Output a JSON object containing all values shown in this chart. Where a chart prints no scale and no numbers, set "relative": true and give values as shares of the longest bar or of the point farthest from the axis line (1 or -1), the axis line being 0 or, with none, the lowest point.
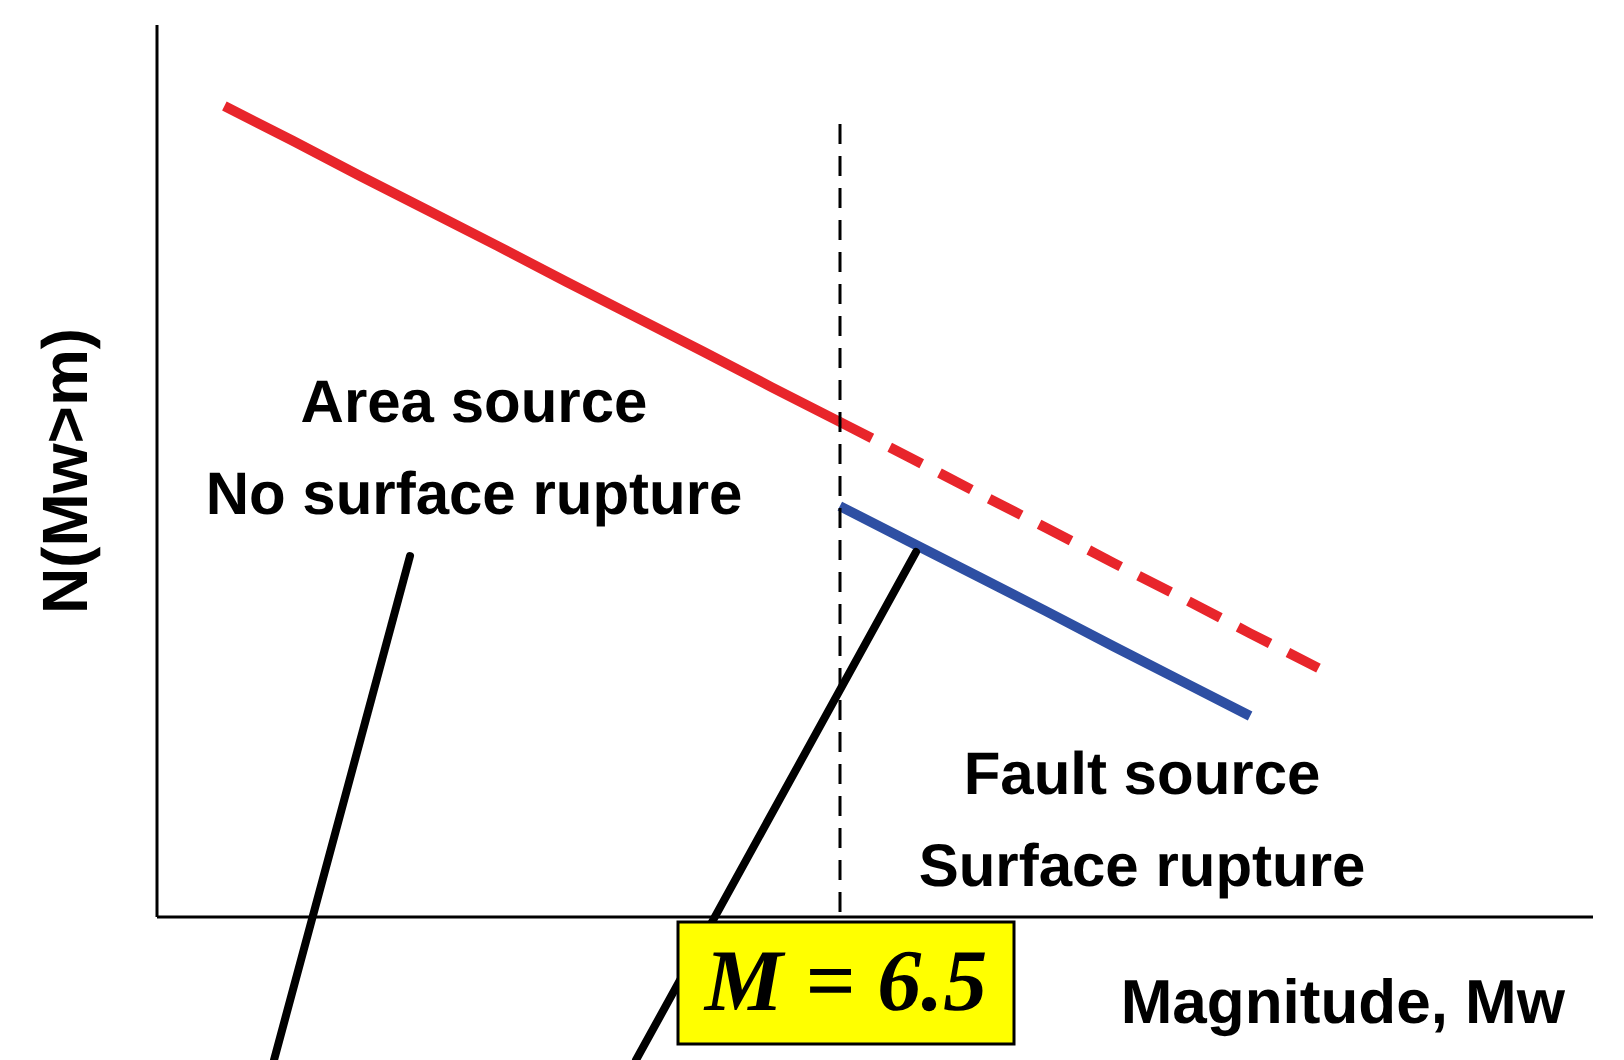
{
  "chart_data": {
    "type": "line",
    "xlabel": "Magnitude, Mw",
    "ylabel": "N(Mw>m)",
    "categories": [
      null,
      null,
      null,
      null,
      null,
      null,
      null,
      null,
      null,
      null,
      null,
      null,
      null,
      null,
      null,
      null,
      null,
      null,
      null,
      null,
      null,
      null
    ],
    "relative": true,
    "grid": false,
    "series": [
      {
        "color": "#e8252b",
        "line_style": "solid",
        "values": [
          null,
          1.0,
          0.957,
          0.913,
          0.87,
          0.827,
          0.783,
          0.74,
          0.697,
          0.653,
          0.61,
          null,
          null,
          null,
          null,
          null,
          null,
          null,
          null,
          null,
          null,
          null
        ]
      },
      {
        "color": "#e8252b",
        "line_style": "dashed",
        "values": [
          null,
          null,
          null,
          null,
          null,
          null,
          null,
          null,
          null,
          null,
          0.61,
          0.567,
          0.523,
          0.48,
          0.436,
          0.393,
          0.349,
          0.306,
          null,
          null,
          null,
          null
        ]
      },
      {
        "color": "#2e4fa3",
        "line_style": "solid",
        "values": [
          null,
          null,
          null,
          null,
          null,
          null,
          null,
          null,
          null,
          null,
          0.506,
          0.463,
          0.42,
          0.377,
          0.333,
          0.29,
          0.247,
          null,
          null,
          null,
          null,
          null
        ]
      }
    ],
    "annotations": [
      "Area source\nNo surface rupture",
      "Fault source\nSurface rupture",
      "M = 6.5"
    ]
  }
}
